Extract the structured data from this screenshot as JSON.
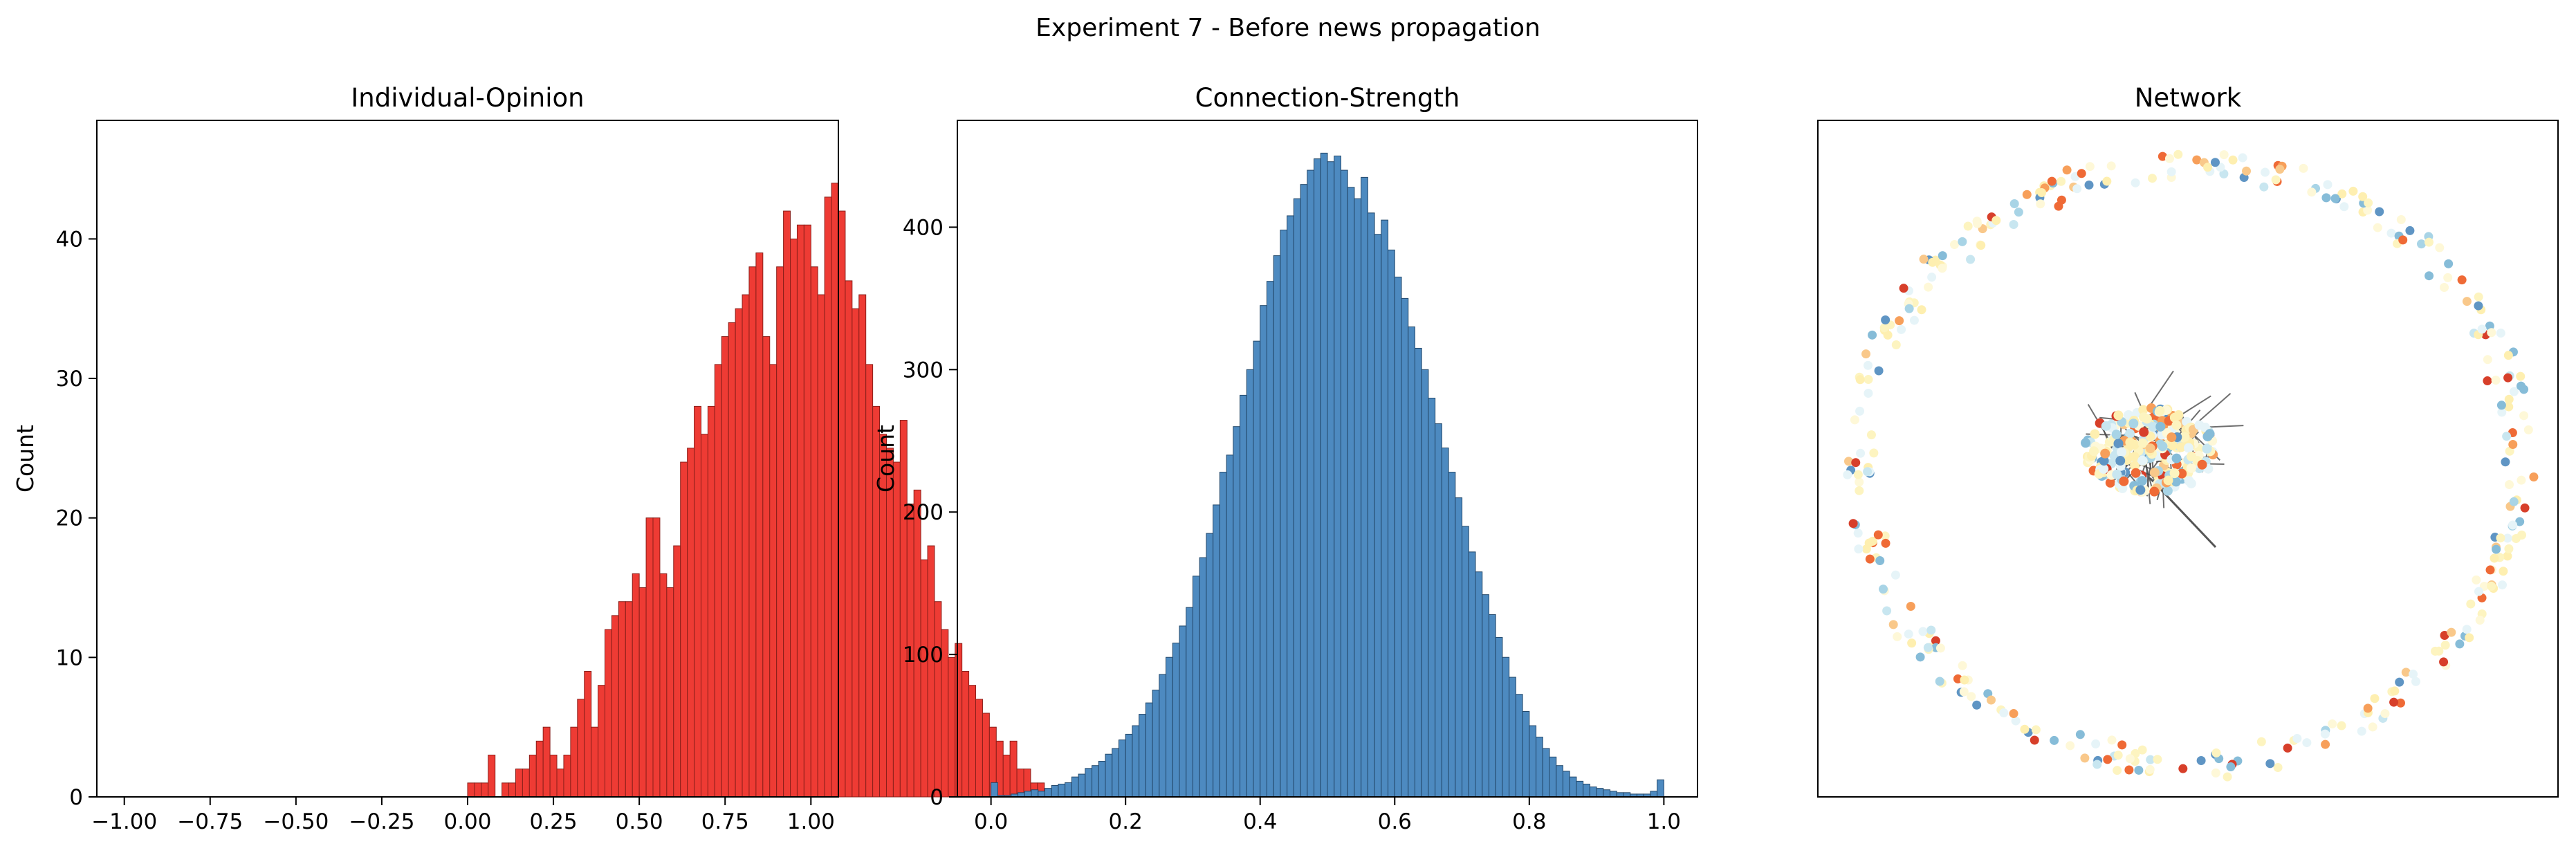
{
  "suptitle": "Experiment 7 - Before news propagation",
  "chart_data": [
    {
      "type": "bar",
      "title": "Individual-Opinion",
      "xlabel": "",
      "ylabel": "Count",
      "xlim": [
        -1.08,
        1.08
      ],
      "ylim": [
        0,
        48.5
      ],
      "xticks": [
        -1.0,
        -0.75,
        -0.5,
        -0.25,
        0.0,
        0.25,
        0.5,
        0.75,
        1.0
      ],
      "xtick_labels": [
        "−1.00",
        "−0.75",
        "−0.50",
        "−0.25",
        "0.00",
        "0.25",
        "0.50",
        "0.75",
        "1.00"
      ],
      "yticks": [
        0,
        10,
        20,
        30,
        40
      ],
      "ytick_labels": [
        "0",
        "10",
        "20",
        "30",
        "40"
      ],
      "bin_start": -1.0,
      "bin_width": 0.02,
      "values": [
        0,
        0,
        0,
        0,
        0,
        0,
        0,
        0,
        0,
        0,
        0,
        0,
        0,
        0,
        0,
        0,
        0,
        0,
        0,
        0,
        0,
        0,
        0,
        0,
        0,
        0,
        0,
        0,
        0,
        0,
        0,
        0,
        0,
        0,
        0,
        0,
        0,
        0,
        0,
        0,
        0,
        0,
        0,
        0,
        0,
        0,
        0,
        0,
        0,
        0,
        1,
        1,
        1,
        3,
        0,
        1,
        1,
        2,
        2,
        3,
        4,
        5,
        3,
        2,
        3,
        5,
        7,
        9,
        5,
        8,
        12,
        13,
        14,
        14,
        16,
        15,
        20,
        20,
        16,
        15,
        18,
        24,
        25,
        28,
        26,
        28,
        31,
        33,
        34,
        35,
        36,
        38,
        39,
        33,
        31,
        38,
        42,
        40,
        41,
        41,
        38,
        36,
        43,
        44,
        42,
        37,
        35,
        36,
        31,
        28,
        26,
        25,
        24,
        27,
        21,
        22,
        17,
        18,
        14,
        12,
        10,
        11,
        9,
        8,
        7,
        6,
        5,
        4,
        3,
        4,
        2,
        2,
        1,
        1
      ],
      "bar_color": "#ee3b34",
      "edge_color": "#8a1f1a",
      "grid": false
    },
    {
      "type": "bar",
      "title": "Connection-Strength",
      "xlabel": "",
      "ylabel": "Count",
      "xlim": [
        -0.05,
        1.05
      ],
      "ylim": [
        0,
        475
      ],
      "xticks": [
        0.0,
        0.2,
        0.4,
        0.6,
        0.8,
        1.0
      ],
      "xtick_labels": [
        "0.0",
        "0.2",
        "0.4",
        "0.6",
        "0.8",
        "1.0"
      ],
      "yticks": [
        0,
        100,
        200,
        300,
        400
      ],
      "ytick_labels": [
        "0",
        "100",
        "200",
        "300",
        "400"
      ],
      "bin_start": 0.0,
      "bin_width": 0.01,
      "values": [
        10,
        1,
        1,
        2,
        3,
        4,
        5,
        4,
        6,
        8,
        9,
        10,
        14,
        16,
        20,
        22,
        25,
        30,
        34,
        40,
        44,
        50,
        58,
        66,
        75,
        86,
        98,
        108,
        120,
        133,
        155,
        168,
        185,
        205,
        228,
        240,
        260,
        282,
        300,
        320,
        345,
        362,
        380,
        398,
        408,
        420,
        430,
        440,
        448,
        452,
        446,
        450,
        440,
        428,
        420,
        435,
        410,
        395,
        405,
        384,
        365,
        350,
        330,
        315,
        300,
        280,
        262,
        245,
        228,
        210,
        190,
        172,
        158,
        142,
        128,
        112,
        98,
        84,
        72,
        60,
        50,
        42,
        34,
        28,
        22,
        18,
        14,
        11,
        9,
        7,
        6,
        5,
        4,
        3,
        3,
        2,
        2,
        2,
        4,
        12
      ],
      "bar_color": "#4d8ac0",
      "edge_color": "#23486a",
      "grid": false
    },
    {
      "type": "scatter",
      "title": "Network",
      "xlabel": "",
      "ylabel": "",
      "axes_visible_ticks": false,
      "node_palette": [
        "#fdf4c0",
        "#feefb0",
        "#fef8d8",
        "#e6f4f8",
        "#c8e6f0",
        "#a8d4e6",
        "#86bcd8",
        "#5f95c4",
        "#f9c88a",
        "#f79f5a",
        "#ef6a36",
        "#d73f2a"
      ],
      "grid": false
    }
  ]
}
